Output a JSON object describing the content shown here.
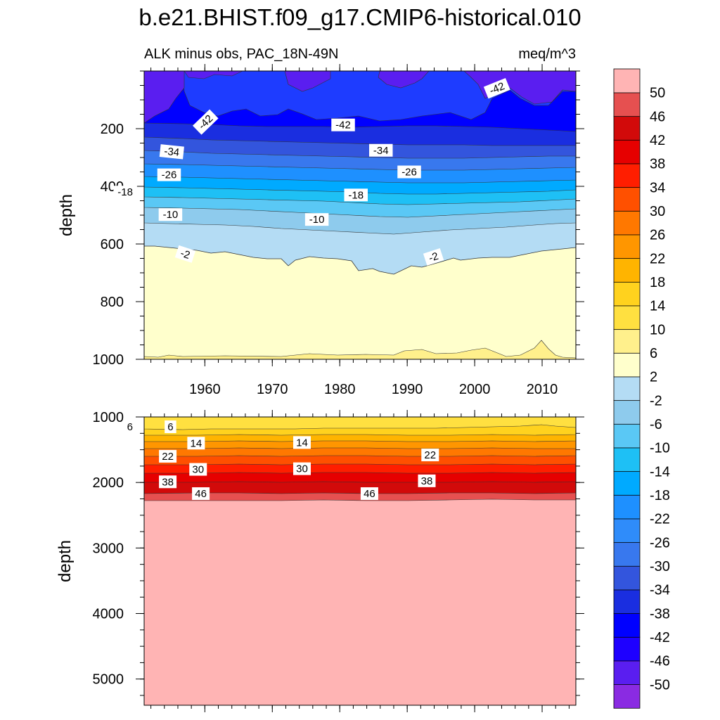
{
  "title": "b.e21.BHIST.f09_g17.CMIP6-historical.010",
  "subtitle_left": "ALK minus obs, PAC_18N-49N",
  "subtitle_right": "meq/m^3",
  "chart_data": {
    "type": "heatmap",
    "x_range": [
      1951,
      2015
    ],
    "x_ticks": [
      1960,
      1970,
      1980,
      1990,
      2000,
      2010
    ],
    "contour_levels": [
      -50,
      -46,
      -42,
      -38,
      -34,
      -30,
      -26,
      -22,
      -18,
      -14,
      -10,
      -6,
      -2,
      2,
      6,
      10,
      14,
      18,
      22,
      26,
      30,
      34,
      38,
      42,
      46,
      50
    ],
    "colorbar_colors": [
      "#8a2be2",
      "#5a1ef0",
      "#1e00ff",
      "#0000ff",
      "#1a2ee0",
      "#3355dd",
      "#3878ee",
      "#2f8cfa",
      "#1e90ff",
      "#00aaff",
      "#1ec0f5",
      "#5ac8f5",
      "#8ecbed",
      "#b4dcf4",
      "#ffffcc",
      "#fff08c",
      "#ffe040",
      "#ffd21e",
      "#ffb400",
      "#ff9600",
      "#ff7800",
      "#ff5000",
      "#ff1e00",
      "#e60000",
      "#d20a0a",
      "#e65050",
      "#ffb4b4"
    ],
    "panels": [
      {
        "name": "upper",
        "ylabel": "depth",
        "ylim": [
          0,
          1000
        ],
        "y_ticks": [
          200,
          400,
          600,
          800,
          1000
        ],
        "x_tick_labels_shown": true,
        "contour_labels": [
          {
            "text": "-42",
            "x": 2003.3,
            "y": 60,
            "rot": -22
          },
          {
            "text": "-42",
            "x": 1960.1,
            "y": 177,
            "rot": -44
          },
          {
            "text": "-42",
            "x": 1980.5,
            "y": 187,
            "rot": 0
          },
          {
            "text": "-34",
            "x": 1955.1,
            "y": 280,
            "rot": 6
          },
          {
            "text": "-34",
            "x": 1986.1,
            "y": 275,
            "rot": 0
          },
          {
            "text": "-26",
            "x": 1954.7,
            "y": 360,
            "rot": 0
          },
          {
            "text": "-26",
            "x": 1990.3,
            "y": 350,
            "rot": 0
          },
          {
            "text": "-18",
            "x": 1948.2,
            "y": 420,
            "rot": 0
          },
          {
            "text": "-18",
            "x": 1982.4,
            "y": 430,
            "rot": 0
          },
          {
            "text": "-10",
            "x": 1954.9,
            "y": 498,
            "rot": 0
          },
          {
            "text": "-10",
            "x": 1976.6,
            "y": 515,
            "rot": 0
          },
          {
            "text": "-2",
            "x": 1957.1,
            "y": 635,
            "rot": 18
          },
          {
            "text": "-2",
            "x": 1993.9,
            "y": 645,
            "rot": -18
          }
        ]
      },
      {
        "name": "lower",
        "ylabel": "depth",
        "ylim": [
          1000,
          5400
        ],
        "y_ticks": [
          1000,
          2000,
          3000,
          4000,
          5000
        ],
        "x_tick_labels_shown": false,
        "contour_labels": [
          {
            "text": "6",
            "x": 1948.9,
            "y": 1150,
            "rot": 0
          },
          {
            "text": "6",
            "x": 1954.9,
            "y": 1150,
            "rot": 0
          },
          {
            "text": "14",
            "x": 1958.7,
            "y": 1400,
            "rot": 0
          },
          {
            "text": "14",
            "x": 1974.4,
            "y": 1390,
            "rot": 0
          },
          {
            "text": "22",
            "x": 1954.5,
            "y": 1600,
            "rot": 0
          },
          {
            "text": "22",
            "x": 1993.4,
            "y": 1580,
            "rot": 0
          },
          {
            "text": "30",
            "x": 1959.0,
            "y": 1800,
            "rot": 0
          },
          {
            "text": "30",
            "x": 1974.4,
            "y": 1790,
            "rot": 0
          },
          {
            "text": "38",
            "x": 1954.5,
            "y": 1990,
            "rot": 0
          },
          {
            "text": "38",
            "x": 1992.9,
            "y": 1975,
            "rot": 0
          },
          {
            "text": "46",
            "x": 1959.4,
            "y": 2170,
            "rot": 0
          },
          {
            "text": "46",
            "x": 1984.4,
            "y": 2170,
            "rot": 0
          }
        ]
      }
    ]
  }
}
